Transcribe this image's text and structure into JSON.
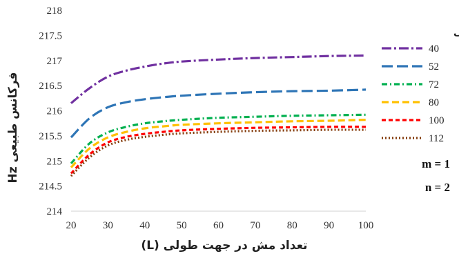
{
  "chart_data": {
    "type": "line",
    "xlabel": "تعداد مش در جهت طولی (L)",
    "ylabel": "فرکانس طبیعی Hz",
    "legend_title": "تعداد مش در جهت محیطی",
    "legend_position": "right",
    "grid": false,
    "xlim": [
      20,
      100
    ],
    "ylim": [
      214,
      218
    ],
    "x_ticks": [
      "20",
      "30",
      "40",
      "50",
      "60",
      "70",
      "80",
      "90",
      "100"
    ],
    "y_ticks": [
      "214",
      "214.5",
      "215",
      "215.5",
      "216",
      "216.5",
      "217",
      "217.5",
      "218"
    ],
    "x": [
      20,
      25,
      30,
      35,
      40,
      45,
      50,
      60,
      70,
      80,
      90,
      100
    ],
    "series": [
      {
        "name": "40",
        "color": "#7030A0",
        "dash": "14,4,3,4",
        "values": [
          216.15,
          216.45,
          216.68,
          216.8,
          216.88,
          216.94,
          216.98,
          217.02,
          217.05,
          217.07,
          217.09,
          217.1
        ]
      },
      {
        "name": "52",
        "color": "#2E75B6",
        "dash": "16,6",
        "values": [
          215.47,
          215.85,
          216.07,
          216.17,
          216.23,
          216.27,
          216.3,
          216.34,
          216.37,
          216.39,
          216.4,
          216.42
        ]
      },
      {
        "name": "72",
        "color": "#00B050",
        "dash": "8,4,2,4",
        "values": [
          214.95,
          215.35,
          215.57,
          215.68,
          215.75,
          215.79,
          215.82,
          215.86,
          215.88,
          215.9,
          215.91,
          215.92
        ]
      },
      {
        "name": "80",
        "color": "#FFC000",
        "dash": "10,5",
        "values": [
          214.87,
          215.25,
          215.47,
          215.58,
          215.65,
          215.69,
          215.72,
          215.75,
          215.77,
          215.79,
          215.8,
          215.82
        ]
      },
      {
        "name": "100",
        "color": "#FF0000",
        "dash": "6,4",
        "values": [
          214.75,
          215.13,
          215.37,
          215.48,
          215.54,
          215.58,
          215.61,
          215.64,
          215.66,
          215.67,
          215.68,
          215.68
        ]
      },
      {
        "name": "112",
        "color": "#843C0C",
        "dash": "2,3",
        "values": [
          214.7,
          215.07,
          215.31,
          215.42,
          215.48,
          215.52,
          215.55,
          215.58,
          215.6,
          215.61,
          215.62,
          215.62
        ]
      }
    ],
    "annotations": [
      "m = 1",
      "n = 2"
    ]
  }
}
